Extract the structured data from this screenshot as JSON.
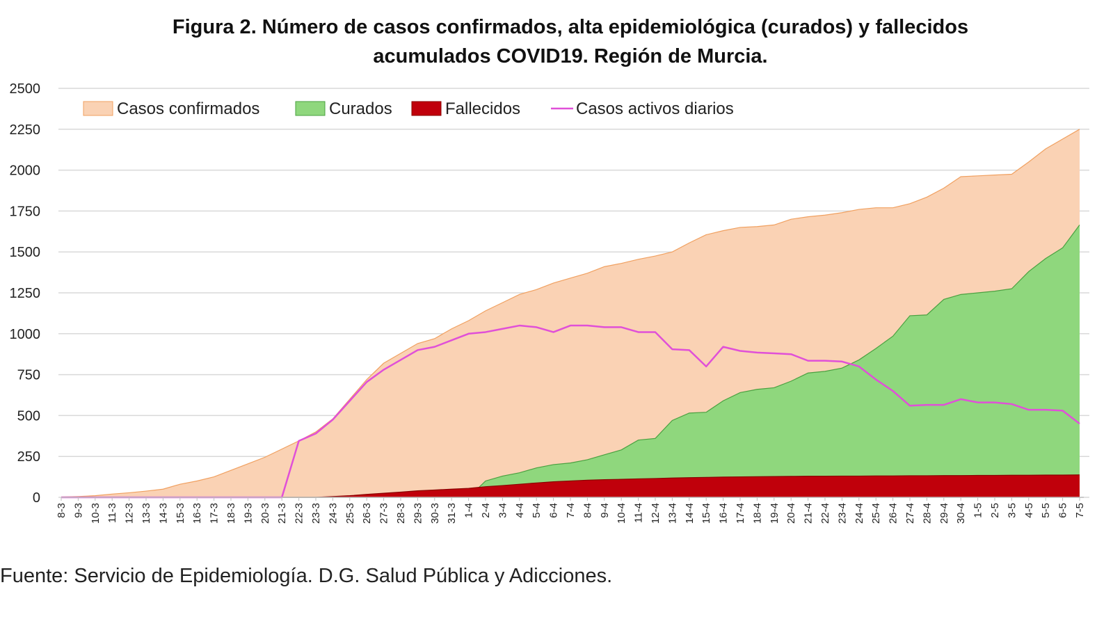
{
  "title": {
    "line1": "Figura 2. Número de casos confirmados, alta epidemiológica (curados) y fallecidos",
    "line2": "acumulados COVID19. Región de Murcia."
  },
  "source": "Fuente: Servicio de Epidemiología. D.G. Salud Pública y Adicciones.",
  "colors": {
    "confirmados_fill": "#fad2b4",
    "confirmados_line": "#f0a060",
    "curados_fill": "#8fd77d",
    "curados_line": "#4aa040",
    "fallecidos_fill": "#c0000b",
    "fallecidos_line": "#8a0000",
    "activos_line": "#e050d8",
    "grid": "#d9d9d9"
  },
  "chart_data": {
    "type": "area",
    "title": "Figura 2. Número de casos confirmados, alta epidemiológica (curados) y fallecidos acumulados COVID19. Región de Murcia.",
    "xlabel": "",
    "ylabel": "",
    "ylim": [
      0,
      2500
    ],
    "yticks": [
      0,
      250,
      500,
      750,
      1000,
      1250,
      1500,
      1750,
      2000,
      2250,
      2500
    ],
    "grid": true,
    "legend_position": "top-left",
    "categories": [
      "8-3",
      "9-3",
      "10-3",
      "11-3",
      "12-3",
      "13-3",
      "14-3",
      "15-3",
      "16-3",
      "17-3",
      "18-3",
      "19-3",
      "20-3",
      "21-3",
      "22-3",
      "23-3",
      "24-3",
      "25-3",
      "26-3",
      "27-3",
      "28-3",
      "29-3",
      "30-3",
      "31-3",
      "1-4",
      "2-4",
      "3-4",
      "4-4",
      "5-4",
      "6-4",
      "7-4",
      "8-4",
      "9-4",
      "10-4",
      "11-4",
      "12-4",
      "13-4",
      "14-4",
      "15-4",
      "16-4",
      "17-4",
      "18-4",
      "19-4",
      "20-4",
      "21-4",
      "22-4",
      "23-4",
      "24-4",
      "25-4",
      "26-4",
      "27-4",
      "28-4",
      "29-4",
      "30-4",
      "1-5",
      "2-5",
      "3-5",
      "4-5",
      "5-5",
      "6-5",
      "7-5"
    ],
    "series": [
      {
        "name": "Casos confirmados",
        "style": "area",
        "values": [
          2,
          5,
          10,
          20,
          28,
          38,
          50,
          80,
          100,
          125,
          165,
          205,
          245,
          295,
          345,
          400,
          480,
          600,
          720,
          820,
          880,
          940,
          970,
          1030,
          1080,
          1140,
          1190,
          1240,
          1270,
          1310,
          1340,
          1370,
          1410,
          1430,
          1455,
          1475,
          1500,
          1555,
          1605,
          1630,
          1650,
          1655,
          1665,
          1700,
          1715,
          1725,
          1740,
          1760,
          1770,
          1770,
          1795,
          1835,
          1890,
          1960,
          1965,
          1970,
          1975,
          2050,
          2130,
          2190,
          2250
        ]
      },
      {
        "name": "Curados",
        "style": "area",
        "values": [
          0,
          0,
          0,
          0,
          0,
          0,
          0,
          0,
          0,
          0,
          0,
          0,
          0,
          0,
          0,
          0,
          0,
          0,
          0,
          0,
          0,
          0,
          0,
          0,
          0,
          100,
          130,
          150,
          180,
          200,
          210,
          230,
          260,
          290,
          350,
          360,
          470,
          515,
          520,
          590,
          640,
          660,
          670,
          710,
          760,
          770,
          790,
          840,
          910,
          985,
          1110,
          1115,
          1210,
          1240,
          1250,
          1260,
          1275,
          1380,
          1460,
          1525,
          1665
        ]
      },
      {
        "name": "Fallecidos",
        "style": "area",
        "values": [
          0,
          0,
          0,
          0,
          0,
          0,
          0,
          0,
          0,
          0,
          0,
          0,
          0,
          0,
          0,
          0,
          5,
          10,
          18,
          25,
          32,
          40,
          45,
          50,
          55,
          65,
          72,
          80,
          88,
          95,
          100,
          105,
          108,
          110,
          113,
          115,
          118,
          120,
          122,
          124,
          125,
          126,
          127,
          128,
          129,
          129,
          130,
          130,
          131,
          131,
          132,
          132,
          133,
          133,
          134,
          134,
          135,
          135,
          136,
          136,
          137
        ]
      },
      {
        "name": "Casos activos diarios",
        "style": "line",
        "values": [
          0,
          0,
          0,
          0,
          0,
          0,
          0,
          0,
          0,
          0,
          0,
          0,
          0,
          0,
          345,
          390,
          475,
          590,
          705,
          780,
          840,
          900,
          920,
          960,
          1000,
          1010,
          1030,
          1050,
          1040,
          1010,
          1050,
          1050,
          1040,
          1040,
          1010,
          1010,
          905,
          900,
          800,
          920,
          895,
          885,
          880,
          875,
          835,
          835,
          830,
          800,
          720,
          650,
          560,
          565,
          565,
          600,
          580,
          580,
          570,
          535,
          535,
          530,
          450
        ]
      }
    ]
  }
}
